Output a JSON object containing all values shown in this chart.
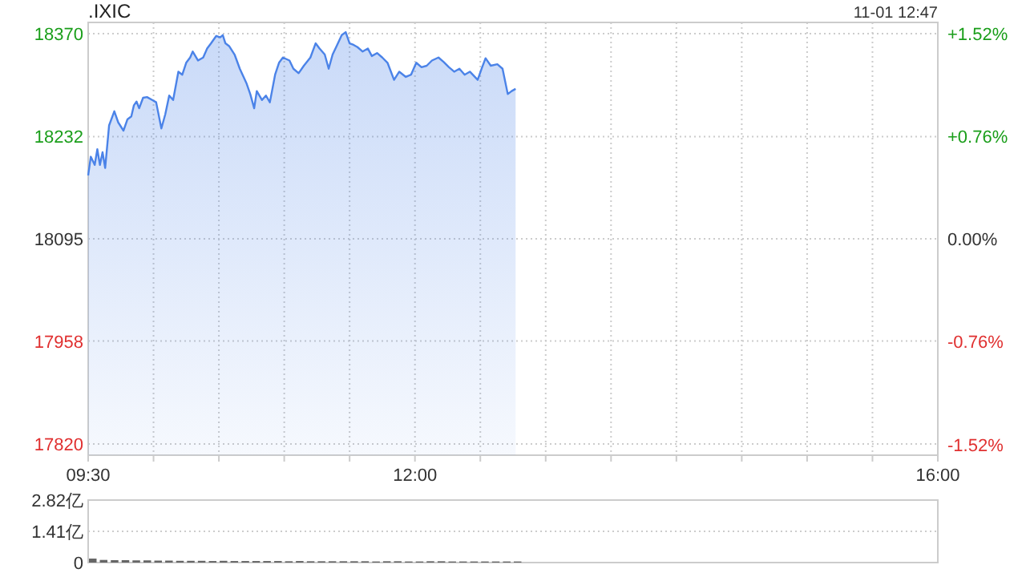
{
  "chart_data": [
    {
      "type": "area",
      "title": ".IXIC",
      "annotations": [
        "11-01 12:47"
      ],
      "xlim": [
        9.5,
        16
      ],
      "xticks": [
        {
          "value": 9.5,
          "label": "09:30"
        },
        {
          "value": 10,
          "label": null
        },
        {
          "value": 10.5,
          "label": null
        },
        {
          "value": 11,
          "label": null
        },
        {
          "value": 11.5,
          "label": null
        },
        {
          "value": 12,
          "label": "12:00"
        },
        {
          "value": 12.5,
          "label": null
        },
        {
          "value": 13,
          "label": null
        },
        {
          "value": 13.5,
          "label": null
        },
        {
          "value": 14,
          "label": null
        },
        {
          "value": 14.5,
          "label": null
        },
        {
          "value": 15,
          "label": null
        },
        {
          "value": 15.5,
          "label": null
        },
        {
          "value": 16,
          "label": "16:00"
        }
      ],
      "ylim": [
        17805,
        18385
      ],
      "yticks": [
        18370,
        18232,
        18095,
        17958,
        17820
      ],
      "y2lim": [
        -1.6,
        1.6
      ],
      "y2ticks": [
        {
          "value": 1.52,
          "label": "+1.52%"
        },
        {
          "value": 0.76,
          "label": "+0.76%"
        },
        {
          "value": 0,
          "label": "0.00%"
        },
        {
          "value": -0.76,
          "label": "-0.76%"
        },
        {
          "value": -1.52,
          "label": "-1.52%"
        }
      ],
      "grid": true,
      "series": [
        {
          "color": "#4b83e8",
          "x": [
            9.5,
            9.52,
            9.55,
            9.57,
            9.59,
            9.61,
            9.63,
            9.66,
            9.7,
            9.73,
            9.77,
            9.8,
            9.83,
            9.85,
            9.87,
            9.89,
            9.92,
            9.95,
            9.99,
            10.02,
            10.06,
            10.09,
            10.12,
            10.15,
            10.19,
            10.22,
            10.25,
            10.28,
            10.3,
            10.34,
            10.38,
            10.41,
            10.44,
            10.48,
            10.51,
            10.53,
            10.55,
            10.58,
            10.62,
            10.66,
            10.71,
            10.74,
            10.77,
            10.79,
            10.83,
            10.86,
            10.89,
            10.93,
            10.96,
            10.99,
            11.04,
            11.07,
            11.11,
            11.15,
            11.2,
            11.24,
            11.27,
            11.31,
            11.34,
            11.37,
            11.4,
            11.44,
            11.47,
            11.5,
            11.53,
            11.56,
            11.6,
            11.64,
            11.67,
            11.71,
            11.75,
            11.79,
            11.84,
            11.88,
            11.93,
            11.97,
            12.01,
            12.05,
            12.09,
            12.13,
            12.18,
            12.22,
            12.26,
            12.3,
            12.34,
            12.38,
            12.42,
            12.48,
            12.51,
            12.54,
            12.58,
            12.63,
            12.67,
            12.71,
            12.74,
            12.77
          ],
          "values": [
            18180,
            18205,
            18194,
            18215,
            18194,
            18211,
            18190,
            18247,
            18266,
            18251,
            18240,
            18255,
            18259,
            18274,
            18279,
            18270,
            18284,
            18285,
            18281,
            18278,
            18243,
            18262,
            18287,
            18281,
            18319,
            18315,
            18331,
            18338,
            18346,
            18334,
            18338,
            18350,
            18357,
            18367,
            18365,
            18368,
            18357,
            18353,
            18342,
            18323,
            18304,
            18289,
            18270,
            18293,
            18281,
            18287,
            18278,
            18315,
            18331,
            18338,
            18334,
            18323,
            18317,
            18327,
            18338,
            18357,
            18350,
            18342,
            18323,
            18342,
            18353,
            18368,
            18372,
            18357,
            18355,
            18352,
            18346,
            18350,
            18340,
            18344,
            18338,
            18331,
            18308,
            18319,
            18312,
            18315,
            18331,
            18325,
            18327,
            18334,
            18338,
            18332,
            18325,
            18319,
            18323,
            18315,
            18319,
            18308,
            18323,
            18337,
            18327,
            18329,
            18323,
            18289,
            18293,
            18296
          ]
        }
      ]
    },
    {
      "type": "bar",
      "tick_labels": "y",
      "grid": "y",
      "xlim": [
        9.5,
        16
      ],
      "ylim": [
        0,
        2.82
      ],
      "yticks": [
        {
          "value": 2.82,
          "label": "2.82亿"
        },
        {
          "value": 1.41,
          "label": "1.41亿"
        },
        0
      ],
      "series": [
        {
          "color": "#666666",
          "x": [
            9.5,
            9.583,
            9.667,
            9.75,
            9.833,
            9.917,
            10,
            10.083,
            10.167,
            10.25,
            10.333,
            10.417,
            10.5,
            10.583,
            10.667,
            10.75,
            10.833,
            10.917,
            11,
            11.083,
            11.167,
            11.25,
            11.333,
            11.417,
            11.5,
            11.583,
            11.667,
            11.75,
            11.833,
            11.917,
            12,
            12.083,
            12.167,
            12.25,
            12.333,
            12.417,
            12.5,
            12.583,
            12.667,
            12.75
          ],
          "values": [
            0.18,
            0.12,
            0.11,
            0.11,
            0.1,
            0.1,
            0.09,
            0.09,
            0.08,
            0.08,
            0.08,
            0.07,
            0.08,
            0.07,
            0.07,
            0.07,
            0.07,
            0.07,
            0.06,
            0.07,
            0.06,
            0.06,
            0.06,
            0.06,
            0.06,
            0.06,
            0.05,
            0.06,
            0.06,
            0.05,
            0.05,
            0.06,
            0.06,
            0.05,
            0.05,
            0.05,
            0.05,
            0.05,
            0.05,
            0.05
          ]
        }
      ]
    }
  ]
}
